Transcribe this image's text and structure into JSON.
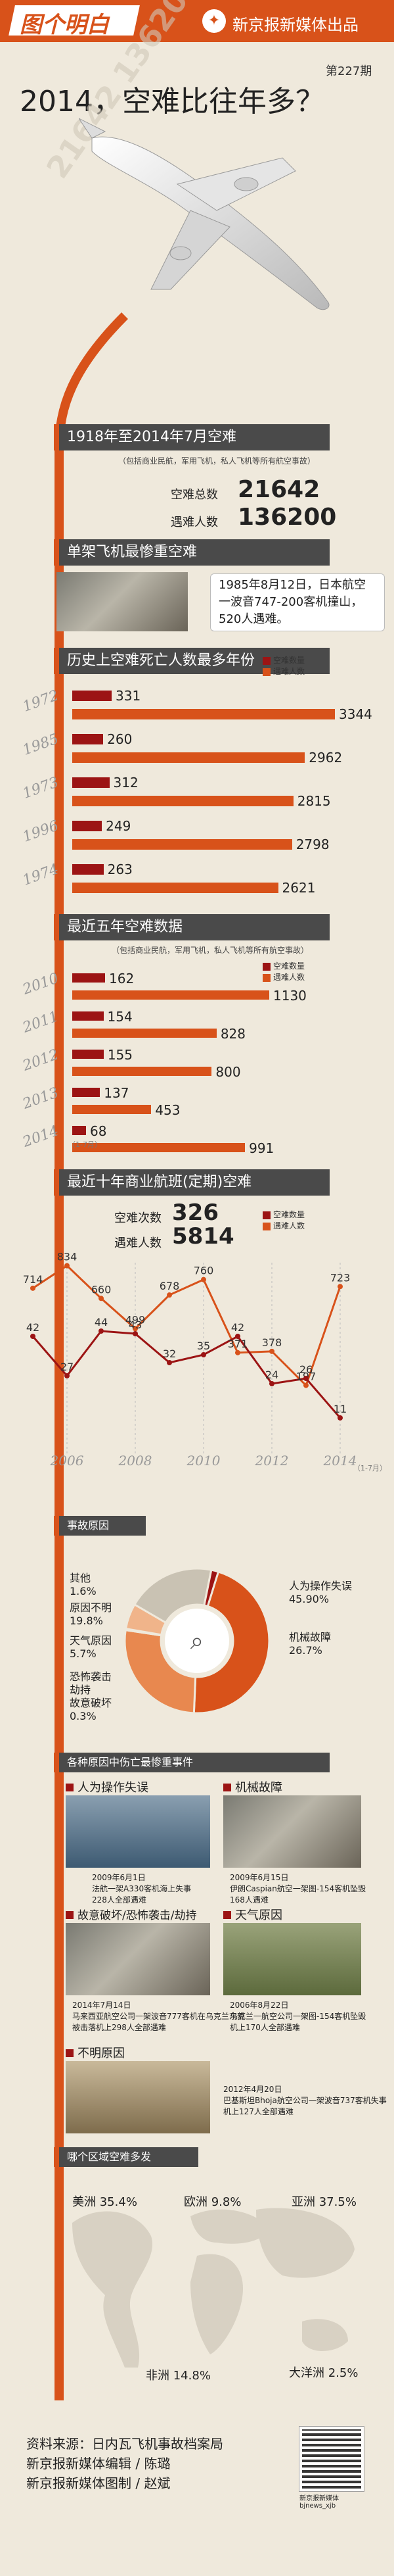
{
  "header": {
    "brand_left": "图个明白",
    "brand_right": "新京报新媒体出品",
    "issue": "第227期",
    "title": "2014，空难比往年多？"
  },
  "watermark": {
    "text": "21642 136200"
  },
  "section1": {
    "band": "1918年至2014年7月空难",
    "note": "（包括商业民航，军用飞机，私人飞机等所有航空事故）",
    "total_label": "空难总数",
    "total_value": "21642",
    "victims_label": "遇难人数",
    "victims_value": "136200"
  },
  "worst": {
    "band": "单架飞机最惨重空难",
    "text": "1985年8月12日，日本航空一波音747-200客机撞山，520人遇难。"
  },
  "history": {
    "band": "历史上空难死亡人数最多年份",
    "legend": [
      "空难数量",
      "遇难人数"
    ]
  },
  "recent5": {
    "band": "最近五年空难数据",
    "note": "（包括商业民航，军用飞机，私人飞机等所有航空事故）",
    "legend": [
      "空难数量",
      "遇难人数"
    ],
    "sublabel_2014": "（1-7月）"
  },
  "decade": {
    "band": "最近十年商业航班(定期)空难",
    "count_label": "空难次数",
    "count_value": "326",
    "victims_label": "遇难人数",
    "victims_value": "5814",
    "legend": [
      "空难数量",
      "遇难人数"
    ],
    "sublabel_2014": "（1-7月）"
  },
  "causes": {
    "band": "事故原因",
    "items": [
      {
        "name": "其他",
        "pct": "1.6%"
      },
      {
        "name": "原因不明",
        "pct": "19.8%"
      },
      {
        "name": "天气原因",
        "pct": "5.7%"
      },
      {
        "name": "恐怖袭击\n劫持\n故意破坏",
        "pct": "0.3%"
      },
      {
        "name": "人为操作失误",
        "pct": "45.90%"
      },
      {
        "name": "机械故障",
        "pct": "26.7%"
      }
    ]
  },
  "events": {
    "band": "各种原因中伤亡最惨重事件",
    "human": {
      "title": "人为操作失误",
      "caption": "2009年6月1日\n法航一架A330客机海上失事\n228人全部遇难"
    },
    "mechanical": {
      "title": "机械故障",
      "caption": "2009年6月15日\n伊朗Caspian航空一架图-154客机坠毁\n168人遇难"
    },
    "terror": {
      "title": "故意破坏/恐怖袭击/劫持",
      "caption": "2014年7月14日\n马来西亚航空公司一架波音777客机在乌克兰东部\n被击落机上298人全部遇难"
    },
    "weather": {
      "title": "天气原因",
      "caption": "2006年8月22日\n乌克兰一航空公司一架图-154客机坠毁\n机上170人全部遇难"
    },
    "unknown": {
      "title": "不明原因",
      "caption": "2012年4月20日\n巴基斯坦Bhoja航空公司一架波音737客机失事\n机上127人全部遇难"
    }
  },
  "regions": {
    "band": "哪个区域空难多发",
    "items": [
      {
        "name": "美洲",
        "pct": "35.4%"
      },
      {
        "name": "欧洲",
        "pct": "9.8%"
      },
      {
        "name": "亚洲",
        "pct": "37.5%"
      },
      {
        "name": "非洲",
        "pct": "14.8%"
      },
      {
        "name": "大洋洲",
        "pct": "2.5%"
      }
    ]
  },
  "footer": {
    "line1": "资料来源：日内瓦飞机事故档案局",
    "line2": "新京报新媒体编辑 / 陈璐",
    "line3": "新京报新媒体图制 / 赵斌",
    "qr_caption": "新京报新媒体\nbjnews_xjb"
  },
  "colors": {
    "accent": "#d8521a",
    "dark_red": "#9c1414",
    "band": "#4a4a4a",
    "bg": "#efe9dc"
  },
  "chart_data": [
    {
      "type": "bar",
      "title": "历史上空难死亡人数最多年份",
      "categories": [
        "1972",
        "1985",
        "1973",
        "1996",
        "1974"
      ],
      "series": [
        {
          "name": "空难数量",
          "values": [
            331,
            260,
            312,
            249,
            263
          ]
        },
        {
          "name": "遇难人数",
          "values": [
            3344,
            2962,
            2815,
            2798,
            2621
          ]
        }
      ]
    },
    {
      "type": "bar",
      "title": "最近五年空难数据",
      "categories": [
        "2010",
        "2011",
        "2012",
        "2013",
        "2014"
      ],
      "series": [
        {
          "name": "空难数量",
          "values": [
            162,
            154,
            155,
            137,
            68
          ]
        },
        {
          "name": "遇难人数",
          "values": [
            1130,
            828,
            800,
            453,
            991
          ]
        }
      ]
    },
    {
      "type": "line",
      "title": "最近十年商业航班(定期)空难",
      "x": [
        "2005",
        "2006",
        "2007",
        "2008",
        "2009",
        "2010",
        "2011",
        "2012",
        "2013",
        "2014"
      ],
      "x_ticks": [
        "2006",
        "2008",
        "2010",
        "2012",
        "2014"
      ],
      "series": [
        {
          "name": "空难数量",
          "values": [
            42,
            27,
            44,
            43,
            32,
            35,
            42,
            24,
            26,
            11
          ]
        },
        {
          "name": "遇难人数",
          "values": [
            714,
            834,
            660,
            499,
            678,
            760,
            371,
            378,
            197,
            723
          ]
        }
      ]
    },
    {
      "type": "pie",
      "title": "事故原因",
      "categories": [
        "人为操作失误",
        "机械故障",
        "恐怖袭击劫持故意破坏",
        "天气原因",
        "原因不明",
        "其他"
      ],
      "values": [
        45.9,
        26.7,
        0.3,
        5.7,
        19.8,
        1.6
      ]
    }
  ]
}
